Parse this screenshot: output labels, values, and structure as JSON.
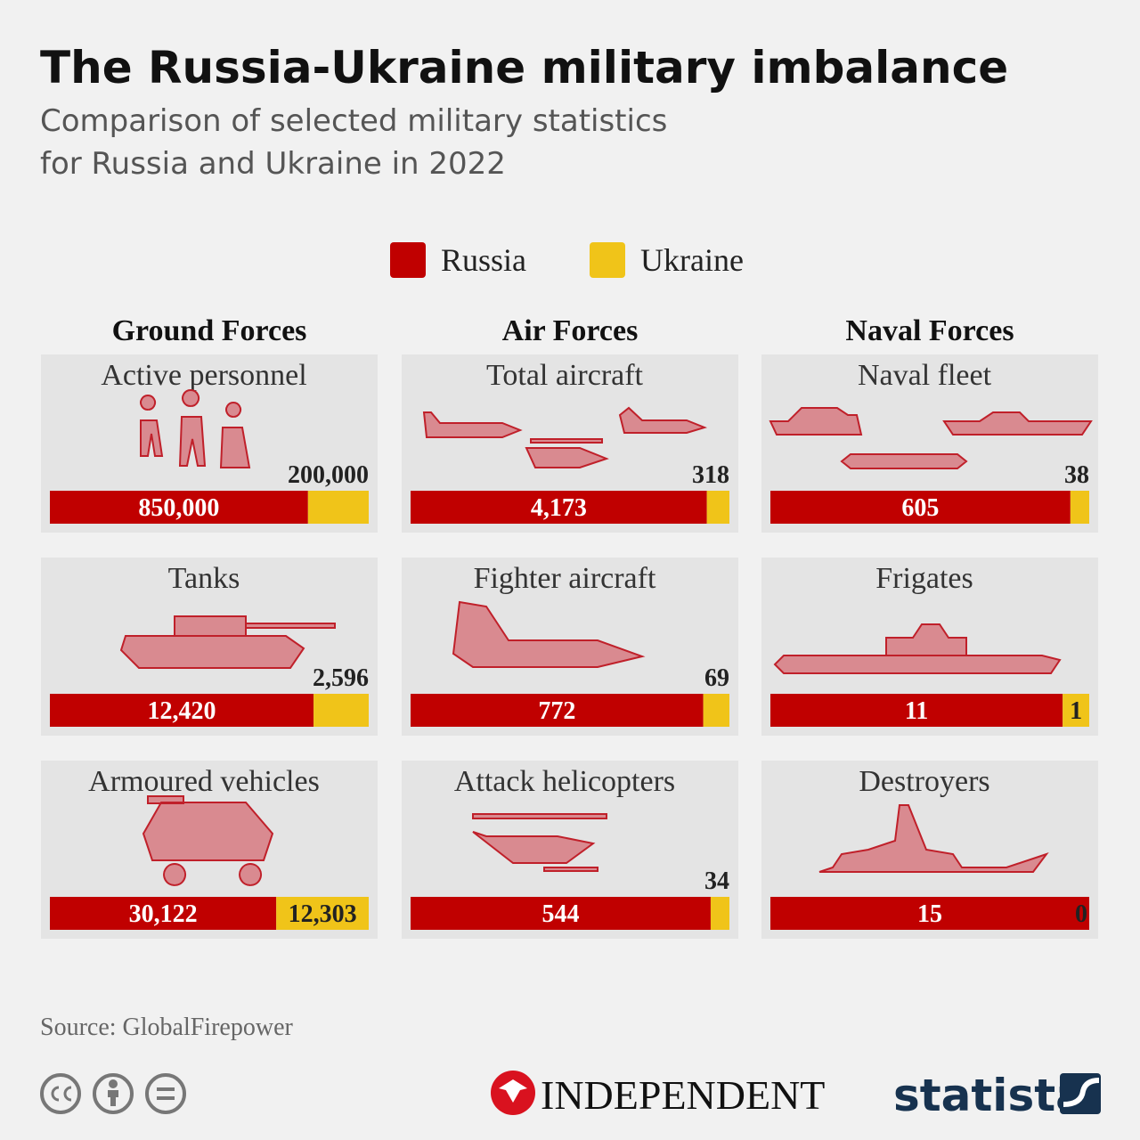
{
  "title": "The Russia-Ukraine military imbalance",
  "subtitle": [
    "Comparison of selected military statistics",
    "for Russia and Ukraine in 2022"
  ],
  "legend": [
    {
      "name": "Russia",
      "color": "#c00000"
    },
    {
      "name": "Ukraine",
      "color": "#f0c419"
    }
  ],
  "groups": [
    "Ground Forces",
    "Air Forces",
    "Naval Forces"
  ],
  "chart_data": [
    {
      "type": "stacked-bar",
      "title": "Active personnel",
      "values": [
        850000,
        200000
      ],
      "value_labels": [
        "850,000",
        "200,000"
      ]
    },
    {
      "type": "stacked-bar",
      "title": "Tanks",
      "values": [
        12420,
        2596
      ],
      "value_labels": [
        "12,420",
        "2,596"
      ]
    },
    {
      "type": "stacked-bar",
      "title": "Armoured vehicles",
      "values": [
        30122,
        12303
      ],
      "value_labels": [
        "30,122",
        "12,303"
      ]
    },
    {
      "type": "stacked-bar",
      "title": "Total aircraft",
      "values": [
        4173,
        318
      ],
      "value_labels": [
        "4,173",
        "318"
      ]
    },
    {
      "type": "stacked-bar",
      "title": "Fighter aircraft",
      "values": [
        772,
        69
      ],
      "value_labels": [
        "772",
        "69"
      ]
    },
    {
      "type": "stacked-bar",
      "title": "Attack helicopters",
      "values": [
        544,
        34
      ],
      "value_labels": [
        "544",
        "34"
      ]
    },
    {
      "type": "stacked-bar",
      "title": "Naval fleet",
      "values": [
        605,
        38
      ],
      "value_labels": [
        "605",
        "38"
      ]
    },
    {
      "type": "stacked-bar",
      "title": "Frigates",
      "values": [
        11,
        1
      ],
      "value_labels": [
        "11",
        "1"
      ]
    },
    {
      "type": "stacked-bar",
      "title": "Destroyers",
      "values": [
        15,
        0
      ],
      "value_labels": [
        "15",
        "0"
      ]
    }
  ],
  "source": "Source: GlobalFirepower",
  "logos": [
    "INDEPENDENT",
    "statista"
  ]
}
